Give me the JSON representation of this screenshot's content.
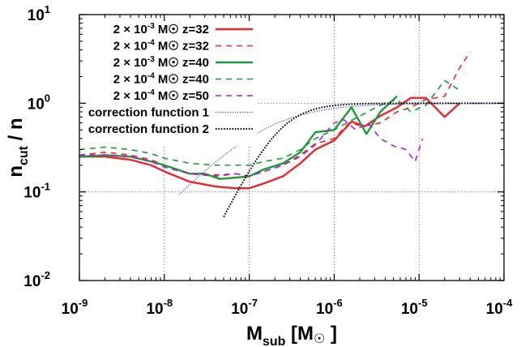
{
  "chart_data": {
    "type": "line",
    "xscale": "log",
    "yscale": "log",
    "xlim": [
      1e-09,
      0.0001
    ],
    "ylim": [
      0.01,
      10
    ],
    "grid": true,
    "legend_position": "top-left",
    "xlabel": {
      "main": "M",
      "sub": "sub",
      "suffix": " [M",
      "sun": "☉",
      "close": " ]"
    },
    "ylabel": {
      "main": "n",
      "sub": "cut",
      "suffix": " / n"
    },
    "x_ticks": [
      {
        "value": 1e-09,
        "base": "10",
        "exp": "-9"
      },
      {
        "value": 1e-08,
        "base": "10",
        "exp": "-8"
      },
      {
        "value": 1e-07,
        "base": "10",
        "exp": "-7"
      },
      {
        "value": 1e-06,
        "base": "10",
        "exp": "-6"
      },
      {
        "value": 1e-05,
        "base": "10",
        "exp": "-5"
      },
      {
        "value": 0.0001,
        "base": "10",
        "exp": "-4"
      }
    ],
    "y_ticks": [
      {
        "value": 0.01,
        "base": "10",
        "exp": "-2"
      },
      {
        "value": 0.1,
        "base": "10",
        "exp": "-1"
      },
      {
        "value": 1,
        "base": "10",
        "exp": "0"
      },
      {
        "value": 10,
        "base": "10",
        "exp": "1"
      }
    ],
    "series": [
      {
        "name": "2 × 10-3 M☉ z=32",
        "label": {
          "pre": "2 × 10",
          "exp": "-3",
          "post": " M☉ z=32"
        },
        "color": "#e8262d",
        "dash": "solid",
        "width": 2.4,
        "x": [
          1e-09,
          2e-09,
          4e-09,
          7e-09,
          1e-08,
          2e-08,
          4e-08,
          7e-08,
          1e-07,
          1.5e-07,
          2.5e-07,
          4e-07,
          6e-07,
          1e-06,
          1.6e-06,
          2.3e-06,
          3.5e-06,
          5.5e-06,
          8e-06,
          1.2e-05,
          2e-05,
          3e-05
        ],
        "y": [
          0.25,
          0.25,
          0.23,
          0.2,
          0.17,
          0.13,
          0.115,
          0.11,
          0.11,
          0.125,
          0.15,
          0.21,
          0.3,
          0.38,
          0.62,
          0.55,
          0.72,
          0.9,
          1.15,
          1.15,
          0.7,
          1.0
        ]
      },
      {
        "name": "2 × 10-4 M☉ z=32",
        "label": {
          "pre": "2 × 10",
          "exp": "-4",
          "post": " M☉ z=32"
        },
        "color": "#e8262d",
        "dash": "7,6",
        "width": 1.6,
        "x": [
          1e-09,
          2e-09,
          4e-09,
          7e-09,
          1e-08,
          2e-08,
          4e-08,
          7e-08,
          1e-07,
          1.5e-07,
          2.5e-07,
          4e-07,
          6e-07,
          1e-06,
          1.5e-06,
          2.2e-06,
          3.5e-06,
          5.5e-06,
          8e-06,
          1.2e-05,
          2e-05,
          3e-05,
          4e-05
        ],
        "y": [
          0.26,
          0.28,
          0.26,
          0.23,
          0.2,
          0.16,
          0.15,
          0.16,
          0.15,
          0.17,
          0.2,
          0.26,
          0.35,
          0.4,
          0.6,
          0.55,
          0.6,
          0.8,
          0.9,
          1.1,
          1.2,
          2.5,
          3.8
        ]
      },
      {
        "name": "2 × 10-3 M☉ z=40",
        "label": {
          "pre": "2 × 10",
          "exp": "-3",
          "post": " M☉ z=40"
        },
        "color": "#1a9a3a",
        "dash": "solid",
        "width": 2.4,
        "x": [
          1e-09,
          2e-09,
          4e-09,
          7e-09,
          1e-08,
          2e-08,
          3e-08,
          4.5e-08,
          7e-08,
          1e-07,
          1.5e-07,
          2.5e-07,
          4e-07,
          6e-07,
          1e-06,
          1.6e-06,
          2.4e-06,
          3.5e-06,
          5.5e-06
        ],
        "y": [
          0.25,
          0.26,
          0.25,
          0.22,
          0.2,
          0.16,
          0.16,
          0.14,
          0.145,
          0.15,
          0.18,
          0.21,
          0.28,
          0.47,
          0.5,
          0.9,
          0.45,
          0.8,
          1.2
        ]
      },
      {
        "name": "2 × 10-4 M☉ z=40",
        "label": {
          "pre": "2 × 10",
          "exp": "-4",
          "post": " M☉ z=40"
        },
        "color": "#1a9a3a",
        "dash": "7,6",
        "width": 1.6,
        "x": [
          1e-09,
          2e-09,
          4e-09,
          7e-09,
          1e-08,
          2e-08,
          4e-08,
          7e-08,
          1e-07,
          1.5e-07,
          2.5e-07,
          4e-07,
          6e-07,
          1e-06,
          1.5e-06,
          2.2e-06,
          3.5e-06,
          5.5e-06,
          8e-06,
          1.2e-05,
          2e-05,
          3e-05
        ],
        "y": [
          0.3,
          0.32,
          0.3,
          0.27,
          0.24,
          0.21,
          0.2,
          0.2,
          0.2,
          0.22,
          0.24,
          0.3,
          0.4,
          0.5,
          0.62,
          0.75,
          0.95,
          1.1,
          0.8,
          0.95,
          1.8,
          1.4
        ]
      },
      {
        "name": "2 × 10-4 M☉ z=50",
        "label": {
          "pre": "2 × 10",
          "exp": "-4",
          "post": " M☉ z=50"
        },
        "color": "#9b27d6",
        "dash": "7,6",
        "width": 1.6,
        "x": [
          1e-09,
          2e-09,
          4e-09,
          7e-09,
          1e-08,
          2e-08,
          4e-08,
          7e-08,
          1e-07,
          1.5e-07,
          2.5e-07,
          4e-07,
          6e-07,
          1e-06,
          1.3e-06,
          1.8e-06,
          2.5e-06,
          3.5e-06,
          5e-06,
          7e-06,
          9e-06,
          1.1e-05
        ],
        "y": [
          0.26,
          0.26,
          0.25,
          0.22,
          0.19,
          0.16,
          0.155,
          0.16,
          0.15,
          0.17,
          0.2,
          0.25,
          0.34,
          0.6,
          0.65,
          0.5,
          0.6,
          0.4,
          0.33,
          0.3,
          0.22,
          0.4
        ]
      },
      {
        "name": "correction function 1",
        "label": {
          "pre": "correction function 1",
          "exp": "",
          "post": ""
        },
        "color": "#2a3fd6",
        "dash": "1.2,1.8",
        "width": 1.2,
        "function": "cf1",
        "domain": [
          1.5e-08,
          0.0001
        ]
      },
      {
        "name": "correction function 2",
        "label": {
          "pre": "correction function 2",
          "exp": "",
          "post": ""
        },
        "color": "#000000",
        "dash": "1.6,1.8",
        "width": 2.0,
        "function": "cf2",
        "domain": [
          5e-08,
          0.0001
        ]
      }
    ]
  }
}
